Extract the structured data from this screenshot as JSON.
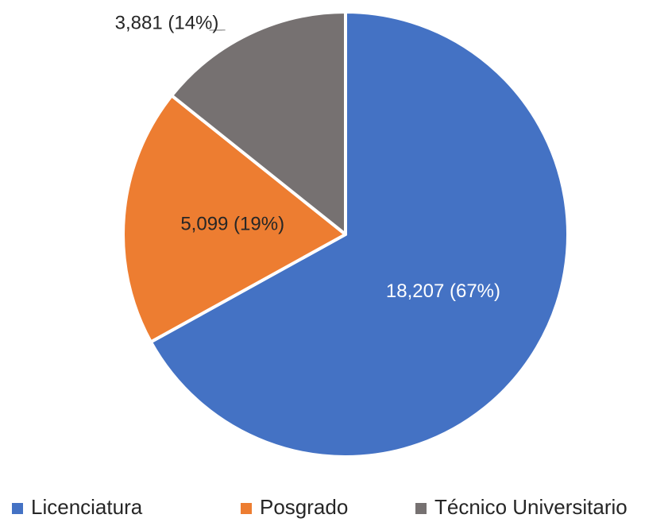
{
  "chart_data": {
    "type": "pie",
    "categories": [
      "Licenciatura",
      "Posgrado",
      "Técnico Universitario"
    ],
    "values": [
      18207,
      5099,
      3881
    ],
    "value_labels": [
      "18,207 (67%)",
      "5,099 (19%)",
      "3,881 (14%)"
    ],
    "colors": [
      "#4472c4",
      "#ed7d31",
      "#767171"
    ],
    "legend": "bottom"
  }
}
